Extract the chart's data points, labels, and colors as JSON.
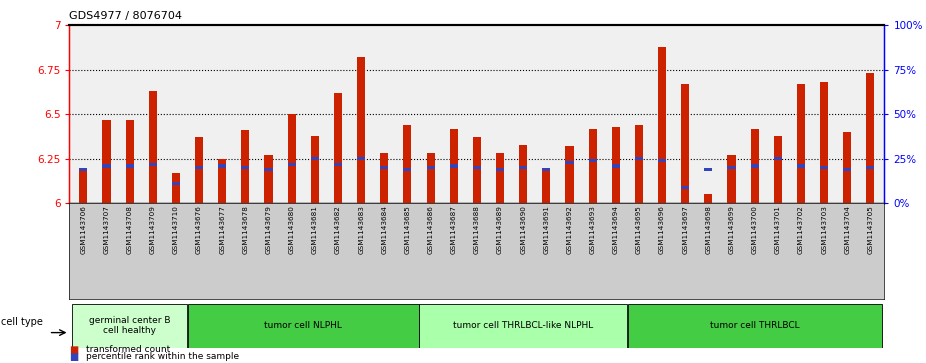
{
  "title": "GDS4977 / 8076704",
  "samples": [
    "GSM1143706",
    "GSM1143707",
    "GSM1143708",
    "GSM1143709",
    "GSM1143710",
    "GSM1143676",
    "GSM1143677",
    "GSM1143678",
    "GSM1143679",
    "GSM1143680",
    "GSM1143681",
    "GSM1143682",
    "GSM1143683",
    "GSM1143684",
    "GSM1143685",
    "GSM1143686",
    "GSM1143687",
    "GSM1143688",
    "GSM1143689",
    "GSM1143690",
    "GSM1143691",
    "GSM1143692",
    "GSM1143693",
    "GSM1143694",
    "GSM1143695",
    "GSM1143696",
    "GSM1143697",
    "GSM1143698",
    "GSM1143699",
    "GSM1143700",
    "GSM1143701",
    "GSM1143702",
    "GSM1143703",
    "GSM1143704",
    "GSM1143705"
  ],
  "bar_values": [
    6.2,
    6.47,
    6.47,
    6.63,
    6.17,
    6.37,
    6.25,
    6.41,
    6.27,
    6.5,
    6.38,
    6.62,
    6.82,
    6.28,
    6.44,
    6.28,
    6.42,
    6.37,
    6.28,
    6.33,
    6.2,
    6.32,
    6.42,
    6.43,
    6.44,
    6.88,
    6.67,
    6.05,
    6.27,
    6.42,
    6.38,
    6.67,
    6.68,
    6.4,
    6.73
  ],
  "percentile_values": [
    6.19,
    6.21,
    6.21,
    6.22,
    6.11,
    6.2,
    6.21,
    6.2,
    6.19,
    6.22,
    6.25,
    6.22,
    6.25,
    6.2,
    6.19,
    6.2,
    6.21,
    6.2,
    6.19,
    6.2,
    6.19,
    6.23,
    6.24,
    6.21,
    6.25,
    6.24,
    6.09,
    6.19,
    6.2,
    6.21,
    6.25,
    6.21,
    6.2,
    6.19,
    6.2
  ],
  "ymin": 6.0,
  "ymax": 7.0,
  "yticks_left": [
    6.0,
    6.25,
    6.5,
    6.75,
    7.0
  ],
  "ytick_labels_left": [
    "6",
    "6.25",
    "6.5",
    "6.75",
    "7"
  ],
  "right_yticks_pct": [
    0,
    25,
    50,
    75,
    100
  ],
  "bar_color": "#cc2200",
  "percentile_color": "#3344bb",
  "plot_bg_color": "#f0f0f0",
  "xlabel_bg_color": "#cccccc",
  "cell_type_groups": [
    {
      "label": "germinal center B\ncell healthy",
      "start": 0,
      "end": 4,
      "color": "#ccffcc"
    },
    {
      "label": "tumor cell NLPHL",
      "start": 5,
      "end": 14,
      "color": "#44cc44"
    },
    {
      "label": "tumor cell THRLBCL-like NLPHL",
      "start": 15,
      "end": 23,
      "color": "#aaffaa"
    },
    {
      "label": "tumor cell THRLBCL",
      "start": 24,
      "end": 34,
      "color": "#44cc44"
    }
  ],
  "legend_red_label": "transformed count",
  "legend_blue_label": "percentile rank within the sample",
  "cell_type_label": "cell type"
}
